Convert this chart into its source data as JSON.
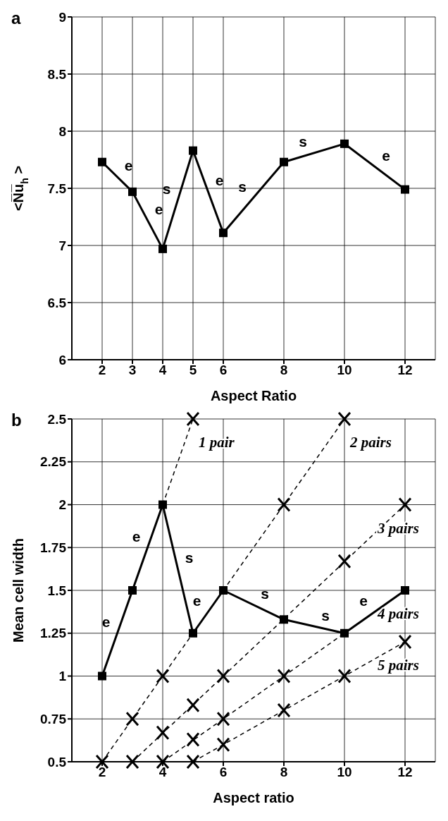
{
  "chart_data": [
    {
      "type": "line",
      "title": "a",
      "xlabel": "Aspect Ratio",
      "ylabel": "<N̅u̅$_{h}$>",
      "color": "#000000",
      "marker": "square",
      "grid": true,
      "x": [
        2,
        3,
        4,
        5,
        6,
        8,
        10,
        12
      ],
      "values": [
        7.73,
        7.47,
        6.97,
        7.83,
        7.11,
        7.73,
        7.89,
        7.49
      ],
      "xlim": [
        1,
        13
      ],
      "xticks": [
        2,
        3,
        4,
        5,
        6,
        8,
        10,
        12
      ],
      "ylim": [
        6,
        9
      ],
      "yticks": [
        6,
        6.5,
        7,
        7.5,
        8,
        8.5,
        9
      ],
      "annotations": [
        "e",
        "e",
        "s",
        "e",
        "s",
        "s",
        "e"
      ]
    },
    {
      "type": "line",
      "title": "b",
      "xlabel": "Aspect ratio",
      "ylabel": "Mean cell width",
      "grid": true,
      "xlim": [
        1,
        13
      ],
      "xticks": [
        2,
        4,
        6,
        8,
        10,
        12
      ],
      "ylim": [
        0.5,
        2.5
      ],
      "yticks": [
        0.5,
        0.75,
        1,
        1.25,
        1.5,
        1.75,
        2,
        2.25,
        2.5
      ],
      "series": [
        {
          "color": "#000000",
          "marker": "square",
          "line_style": "solid",
          "x": [
            2,
            3,
            4,
            5,
            6,
            8,
            10,
            12
          ],
          "values": [
            1,
            1.5,
            2,
            1.25,
            1.5,
            1.33,
            1.25,
            1.5
          ]
        },
        {
          "name": "1 pair",
          "color": "#000000",
          "marker": "none",
          "line_style": "dashed",
          "x": [
            4,
            5
          ],
          "values": [
            2,
            2.5
          ]
        },
        {
          "name": "2 pairs",
          "color": "#000000",
          "marker": "none",
          "line_style": "dashed",
          "x": [
            2,
            10
          ],
          "values": [
            0.5,
            2.5
          ]
        },
        {
          "name": "3 pairs",
          "color": "#000000",
          "marker": "none",
          "line_style": "dashed",
          "x": [
            3,
            12
          ],
          "values": [
            0.5,
            2
          ]
        },
        {
          "name": "4 pairs",
          "color": "#000000",
          "marker": "none",
          "line_style": "dashed",
          "x": [
            4,
            12
          ],
          "values": [
            0.5,
            1.5
          ]
        },
        {
          "name": "5 pairs",
          "color": "#000000",
          "marker": "none",
          "line_style": "dashed",
          "x": [
            5,
            12
          ],
          "values": [
            0.5,
            1.2
          ]
        },
        {
          "type": "scatter",
          "color": "#000000",
          "marker": "cross",
          "x": [
            5,
            2,
            3,
            4,
            8,
            10,
            3,
            4,
            5,
            6,
            10,
            12,
            4,
            5,
            6,
            8,
            5,
            6,
            8,
            10,
            12
          ],
          "values": [
            2.5,
            0.5,
            0.75,
            1,
            2,
            2.5,
            0.5,
            0.67,
            0.83,
            1,
            1.67,
            2,
            0.5,
            0.63,
            0.75,
            1,
            0.5,
            0.6,
            0.8,
            1,
            1.2
          ]
        }
      ],
      "annotations": [
        "e",
        "e",
        "s",
        "e",
        "s",
        "s",
        "e"
      ]
    }
  ]
}
